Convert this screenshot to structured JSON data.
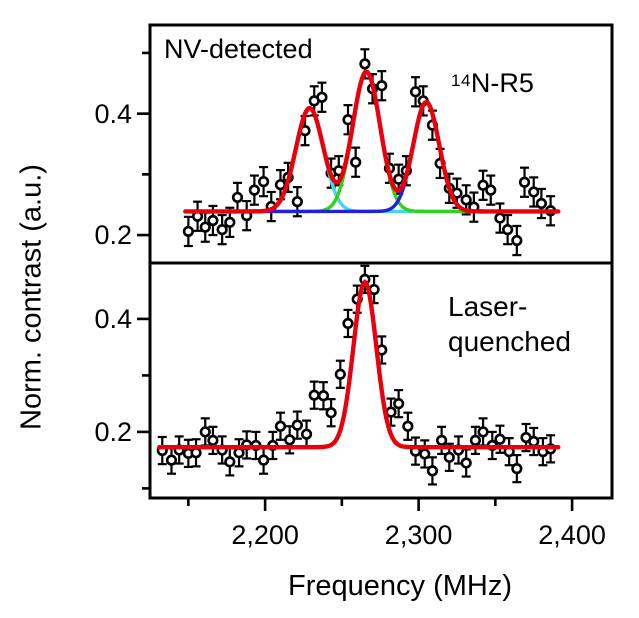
{
  "figure_type": "two-panel stacked spectroscopy plot",
  "x_axis": {
    "label": "Frequency (MHz)",
    "range": [
      2125,
      2426
    ],
    "ticks_major": [
      {
        "value": 2200,
        "label": "2,200"
      },
      {
        "value": 2300,
        "label": "2,300"
      },
      {
        "value": 2400,
        "label": "2,400"
      }
    ],
    "ticks_minor": [
      2150,
      2250,
      2350
    ]
  },
  "y_axis": {
    "label": "Norm. contrast (a.u.)"
  },
  "marker_style": {
    "shape": "open-circle",
    "color": "#000000",
    "error_bars": true
  },
  "chart_data": [
    {
      "type": "scatter",
      "panel": "top",
      "title": "NV-detected",
      "annotation": "14N-R5",
      "annotation_sup": "14",
      "annotation_main": "N-R5",
      "xlabel": "Frequency (MHz)",
      "ylabel": "Norm. contrast (a.u.)",
      "xlim": [
        2125,
        2426
      ],
      "ylim": [
        0.154,
        0.546
      ],
      "y_ticks_major": [
        {
          "value": 0.4,
          "label": "0.4"
        },
        {
          "value": 0.2,
          "label": "0.2"
        }
      ],
      "y_ticks_minor": [
        0.5,
        0.3
      ],
      "points": {
        "x": [
          2150,
          2156,
          2161,
          2166,
          2172,
          2177,
          2182,
          2188,
          2193,
          2199,
          2204,
          2210,
          2215,
          2221,
          2226,
          2232,
          2237,
          2243,
          2248,
          2254,
          2259,
          2265,
          2270,
          2276,
          2281,
          2287,
          2292,
          2298,
          2303,
          2309,
          2314,
          2320,
          2325,
          2331,
          2336,
          2342,
          2347,
          2353,
          2358,
          2364,
          2369,
          2375,
          2380,
          2386
        ],
        "y": [
          0.206,
          0.231,
          0.213,
          0.224,
          0.209,
          0.221,
          0.262,
          0.232,
          0.274,
          0.288,
          0.247,
          0.283,
          0.295,
          0.255,
          0.372,
          0.421,
          0.427,
          0.302,
          0.306,
          0.39,
          0.32,
          0.482,
          0.441,
          0.446,
          0.31,
          0.292,
          0.306,
          0.436,
          0.421,
          0.381,
          0.318,
          0.277,
          0.269,
          0.258,
          0.246,
          0.282,
          0.274,
          0.228,
          0.209,
          0.191,
          0.287,
          0.271,
          0.252,
          0.24
        ],
        "yerr": 0.024
      },
      "fit": {
        "color": "#e8000d",
        "baseline": 0.239,
        "range": [
          2148,
          2391
        ],
        "peaks": [
          {
            "center": 2229,
            "amplitude": 0.17,
            "sigma": 9.0
          },
          {
            "center": 2266,
            "amplitude": 0.23,
            "sigma": 9.0
          },
          {
            "center": 2305,
            "amplitude": 0.18,
            "sigma": 8.5
          }
        ]
      },
      "components": [
        {
          "name": "hyperfine-left",
          "color": "#45d8e8",
          "peak": 0
        },
        {
          "name": "hyperfine-center",
          "color": "#2ed321",
          "peak": 1
        },
        {
          "name": "hyperfine-right",
          "color": "#2020dd",
          "peak": 2
        }
      ]
    },
    {
      "type": "scatter",
      "panel": "bottom",
      "title": "Laser-quenched",
      "title_lines": [
        "Laser-",
        "quenched"
      ],
      "xlabel": "Frequency (MHz)",
      "ylabel": "Norm. contrast (a.u.)",
      "xlim": [
        2125,
        2426
      ],
      "ylim": [
        0.083,
        0.499
      ],
      "y_ticks_major": [
        {
          "value": 0.4,
          "label": "0.4"
        },
        {
          "value": 0.2,
          "label": "0.2"
        }
      ],
      "y_ticks_minor": [
        0.3,
        0.1
      ],
      "points": {
        "x": [
          2133,
          2139,
          2144,
          2150,
          2155,
          2161,
          2166,
          2172,
          2177,
          2183,
          2188,
          2194,
          2199,
          2205,
          2210,
          2216,
          2221,
          2227,
          2232,
          2238,
          2243,
          2249,
          2254,
          2260,
          2265,
          2271,
          2276,
          2282,
          2287,
          2293,
          2298,
          2304,
          2309,
          2315,
          2320,
          2326,
          2331,
          2337,
          2342,
          2348,
          2353,
          2359,
          2364,
          2370,
          2375,
          2381,
          2386
        ],
        "y": [
          0.167,
          0.15,
          0.168,
          0.162,
          0.163,
          0.2,
          0.185,
          0.168,
          0.147,
          0.163,
          0.177,
          0.176,
          0.15,
          0.176,
          0.21,
          0.186,
          0.212,
          0.196,
          0.265,
          0.264,
          0.234,
          0.302,
          0.392,
          0.435,
          0.47,
          0.452,
          0.345,
          0.235,
          0.25,
          0.21,
          0.166,
          0.161,
          0.131,
          0.185,
          0.155,
          0.168,
          0.145,
          0.185,
          0.2,
          0.176,
          0.187,
          0.165,
          0.135,
          0.19,
          0.183,
          0.165,
          0.17
        ],
        "yerr": 0.024
      },
      "fit": {
        "color": "#e8000d",
        "baseline": 0.173,
        "range": [
          2131,
          2391
        ],
        "peaks": [
          {
            "center": 2265,
            "amplitude": 0.292,
            "sigma": 7.5
          }
        ]
      },
      "components": []
    }
  ]
}
